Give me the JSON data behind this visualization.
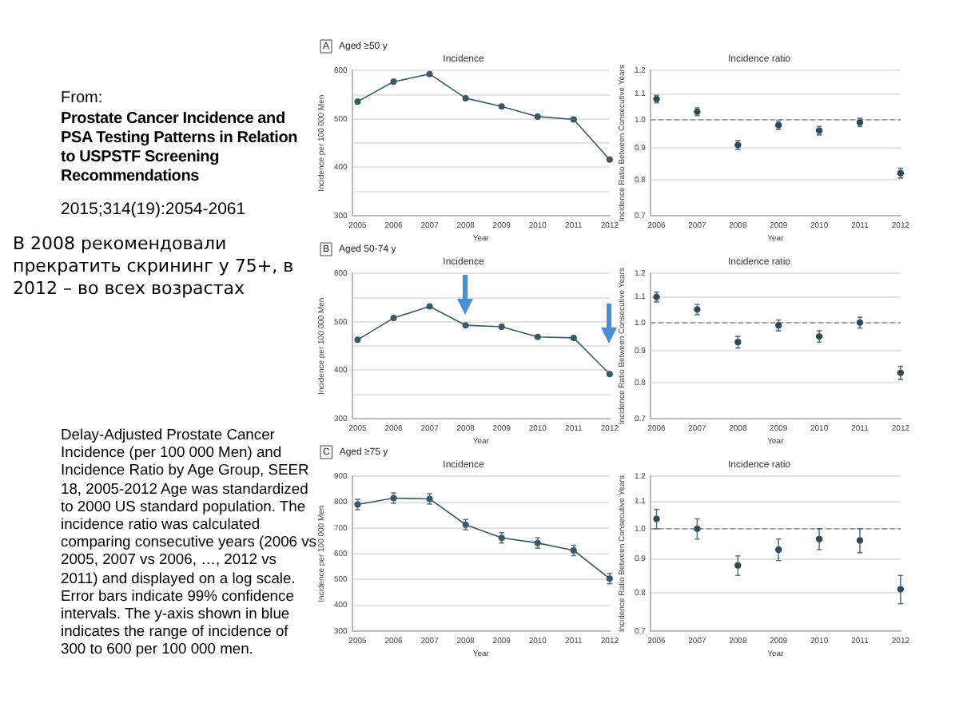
{
  "chart_data": [
    {
      "type": "other",
      "title": "Prostate Cancer Incidence and PSA Testing Patterns in Relation to USPSTF Screening Recommendations",
      "annotations": [
        "From:",
        "2015;314(19):2054-2061",
        "В 2008 рекомендовали прекратить скрининг у 75+, в 2012 – во всех возрастах",
        "Delay-Adjusted Prostate Cancer Incidence (per 100 000 Men) and Incidence Ratio by Age Group, SEER 18, 2005-2012 Age was standardized to 2000 US standard population. The incidence ratio was calculated comparing consecutive years (2006 vs 2005, 2007 vs 2006, …, 2012 vs 2011) and displayed on a log scale. Error bars indicate 99% confidence intervals. The y-axis shown in blue indicates the range of incidence of 300 to 600 per 100 000 men."
      ]
    },
    {
      "type": "line",
      "title": "Incidence",
      "annotations": [
        "A",
        "Aged ≥50 y"
      ],
      "xlabel": "Year",
      "ylabel": "Incidence per 100 000 Men",
      "categories": [
        "2005",
        "2006",
        "2007",
        "2008",
        "2009",
        "2010",
        "2011",
        "2012"
      ],
      "values": [
        536,
        577,
        593,
        543,
        526,
        505,
        499,
        416
      ],
      "color": "#3b5960",
      "marker": "circle",
      "ylim": [
        300,
        600
      ],
      "yticks": [
        300,
        {
          "value": 350,
          "label": null
        },
        400,
        {
          "value": 450,
          "label": null
        },
        500,
        {
          "value": 550,
          "label": null
        },
        600
      ],
      "grid": "y"
    },
    {
      "type": "scatter",
      "title": "Incidence ratio",
      "xlabel": "Year",
      "ylabel": "Incidence Ratio Between Consecutive Years",
      "categories": [
        "2006",
        "2007",
        "2008",
        "2009",
        "2010",
        "2011",
        "2012"
      ],
      "values": [
        1.08,
        1.03,
        0.91,
        0.98,
        0.96,
        0.99,
        0.82
      ],
      "errors": [
        0.015,
        0.015,
        0.015,
        0.015,
        0.015,
        0.015,
        0.015
      ],
      "color": "#2e4a52",
      "marker": "circle",
      "log": true,
      "ylim": [
        0.7,
        1.2
      ],
      "yticks": [
        0.7,
        0.8,
        0.9,
        {
          "value": 1,
          "label": "1.0"
        },
        1.1,
        1.2
      ],
      "grid": "y",
      "ref_lines": [
        {
          "axis": "y",
          "value": 1,
          "color": "#999999",
          "line_style": "dashed"
        }
      ]
    },
    {
      "type": "line",
      "title": "Incidence",
      "annotations": [
        "B",
        "Aged 50-74 y"
      ],
      "xlabel": "Year",
      "ylabel": "Incidence per 100 000 Men",
      "categories": [
        "2005",
        "2006",
        "2007",
        "2008",
        "2009",
        "2010",
        "2011",
        "2012"
      ],
      "values": [
        463,
        508,
        532,
        493,
        490,
        469,
        467,
        392
      ],
      "color": "#3b5960",
      "marker": "circle",
      "ylim": [
        300,
        600
      ],
      "yticks": [
        300,
        {
          "value": 350,
          "label": null
        },
        400,
        {
          "value": 450,
          "label": null
        },
        500,
        {
          "value": 550,
          "label": null
        },
        600
      ],
      "grid": "y"
    },
    {
      "type": "scatter",
      "title": "Incidence ratio",
      "xlabel": "Year",
      "ylabel": "Incidence Ratio Between Consecutive Years",
      "categories": [
        "2006",
        "2007",
        "2008",
        "2009",
        "2010",
        "2011",
        "2012"
      ],
      "values": [
        1.1,
        1.05,
        0.93,
        0.99,
        0.95,
        1.0,
        0.83
      ],
      "errors": [
        0.02,
        0.02,
        0.02,
        0.02,
        0.02,
        0.02,
        0.02
      ],
      "color": "#2e4a52",
      "marker": "circle",
      "log": true,
      "ylim": [
        0.7,
        1.2
      ],
      "yticks": [
        0.7,
        0.8,
        0.9,
        {
          "value": 1,
          "label": "1.0"
        },
        1.1,
        1.2
      ],
      "grid": "y",
      "ref_lines": [
        {
          "axis": "y",
          "value": 1,
          "color": "#999999",
          "line_style": "dashed"
        }
      ]
    },
    {
      "type": "line",
      "title": "Incidence",
      "annotations": [
        "C",
        "Aged ≥75 y"
      ],
      "xlabel": "Year",
      "ylabel": "Incidence per 100 000 Men",
      "categories": [
        "2005",
        "2006",
        "2007",
        "2008",
        "2009",
        "2010",
        "2011",
        "2012"
      ],
      "values": [
        791,
        816,
        813,
        713,
        662,
        642,
        613,
        504
      ],
      "errors": [
        20,
        20,
        20,
        20,
        20,
        20,
        20,
        20
      ],
      "color": "#3b5960",
      "marker": "circle",
      "ylim": [
        300,
        900
      ],
      "yticks": [
        300,
        400,
        500,
        600,
        700,
        800,
        900
      ],
      "grid": "y"
    },
    {
      "type": "scatter",
      "title": "Incidence ratio",
      "xlabel": "Year",
      "ylabel": "Incidence Ratio Between Consecutive Years",
      "categories": [
        "2006",
        "2007",
        "2008",
        "2009",
        "2010",
        "2011",
        "2012"
      ],
      "values": [
        1.035,
        1.0,
        0.88,
        0.93,
        0.965,
        0.96,
        0.81
      ],
      "errors": [
        0.035,
        0.035,
        0.03,
        0.035,
        0.035,
        0.04,
        0.04
      ],
      "color": "#2e4a52",
      "marker": "circle",
      "log": true,
      "ylim": [
        0.7,
        1.2
      ],
      "yticks": [
        0.7,
        0.8,
        0.9,
        {
          "value": 1,
          "label": "1.0"
        },
        1.1,
        1.2
      ],
      "grid": "y",
      "ref_lines": [
        {
          "axis": "y",
          "value": 1,
          "color": "#999999",
          "line_style": "dashed"
        }
      ]
    }
  ]
}
